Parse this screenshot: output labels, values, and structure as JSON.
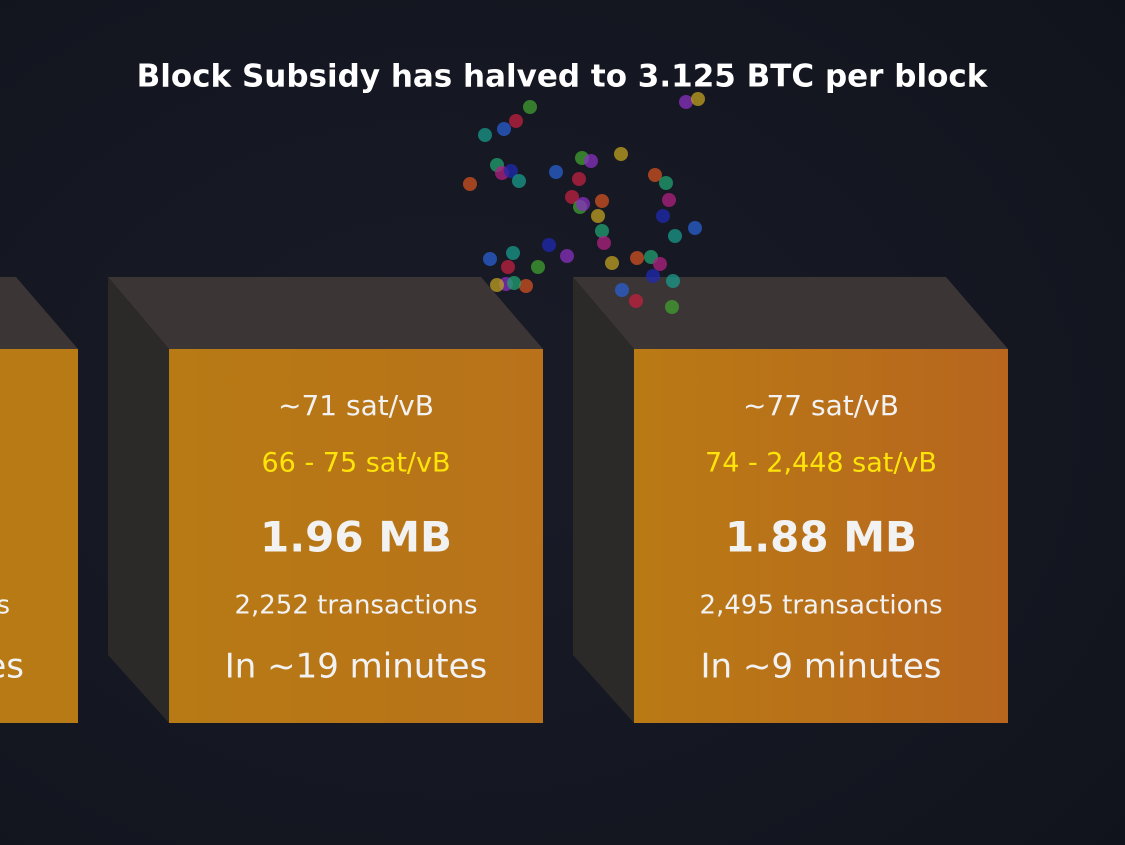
{
  "header": {
    "title": "Block Subsidy has halved to 3.125 BTC per block"
  },
  "partial_block": {
    "transactions": "ns",
    "eta": "es"
  },
  "blocks": [
    {
      "median_fee": "~71 sat/vB",
      "fee_range": "66 - 75 sat/vB",
      "size": "1.96 MB",
      "transactions": "2,252 transactions",
      "eta": "In ~19 minutes"
    },
    {
      "median_fee": "~77 sat/vB",
      "fee_range": "74 - 2,448 sat/vB",
      "size": "1.88 MB",
      "transactions": "2,495 transactions",
      "eta": "In ~9 minutes"
    }
  ]
}
